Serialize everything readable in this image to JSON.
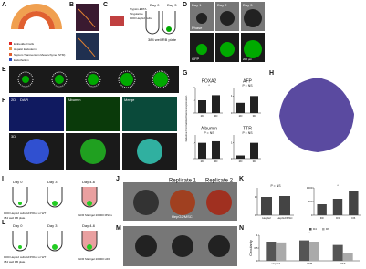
{
  "panels": {
    "A": {
      "label": "A",
      "legend": [
        "Embedded Cells",
        "Hepatic Endoderm",
        "Septum Transversum Mesenchyme (STM)",
        "Endothelium"
      ]
    },
    "B": {
      "label": "B"
    },
    "C": {
      "label": "C",
      "steps": [
        "Trypsin-EDTA",
        "Singularize",
        "1000 HepG2 cells"
      ],
      "plate": "384 well RB plate",
      "days": [
        "Day 0",
        "Day 3"
      ]
    },
    "D": {
      "label": "D",
      "days": [
        "Day 1",
        "Day 2",
        "Day 3"
      ],
      "rows": [
        "Phase",
        "GFP"
      ],
      "scale": "200 µm"
    },
    "E": {
      "label": "E"
    },
    "F": {
      "label": "F",
      "columns": [
        "DAPI",
        "Albumin",
        "Merge"
      ],
      "rows": [
        "2D",
        "3D"
      ]
    },
    "G": {
      "label": "G",
      "ylabel": "Relative Normalized Gene Expression",
      "charts": [
        {
          "title": "FOXA2",
          "annotation": "*",
          "categories": [
            "2D",
            "3D"
          ],
          "values": [
            1,
            1.4
          ],
          "ylim": [
            0,
            2
          ],
          "yticks": [
            0,
            1,
            2
          ],
          "color": "#222"
        },
        {
          "title": "AFP",
          "annotation": "P = NS",
          "categories": [
            "2D",
            "3D"
          ],
          "values": [
            0.6,
            1
          ],
          "ylim": [
            0,
            1.5
          ],
          "yticks": [
            0,
            1
          ],
          "color": "#222"
        },
        {
          "title": "Albumin",
          "annotation": "P = NS",
          "categories": [
            "2D",
            "3D"
          ],
          "values": [
            1,
            1.1
          ],
          "ylim": [
            0,
            1.5
          ],
          "yticks": [
            0,
            1
          ],
          "color": "#222"
        },
        {
          "title": "TTR",
          "annotation": "P = NS",
          "categories": [
            "2D",
            "3D"
          ],
          "values": [
            0.2,
            1
          ],
          "ylim": [
            0,
            1.5
          ],
          "yticks": [
            0,
            1
          ],
          "color": "#222"
        }
      ]
    },
    "H": {
      "label": "H"
    },
    "I": {
      "label": "I",
      "days": [
        "Day 0",
        "Day 3",
        "Day 4-6"
      ],
      "cells": "1000 HepG2 cells GFP/Fluc or WT",
      "plate": "384 well RB plate",
      "matrix": "GFR Matrigel 20,000 MSCs"
    },
    "J": {
      "label": "J",
      "replicates": [
        "Replicate 1",
        "Replicate 2"
      ],
      "inset": "HepG2/MSC"
    },
    "K": {
      "label": "K",
      "charts": [
        {
          "annotation": "P = NS",
          "categories": [
            "HepG2",
            "HepG2/MSC"
          ],
          "values": [
            1,
            1.05
          ],
          "ylim": [
            0,
            1.5
          ],
          "yticks": [
            0,
            1
          ],
          "color": "#444"
        },
        {
          "annotation": "*",
          "categories": [
            "D0",
            "D3",
            "D6"
          ],
          "values": [
            400,
            600,
            900
          ],
          "ylim": [
            0,
            1000
          ],
          "yticks": [
            0,
            500,
            1000
          ],
          "color": "#444"
        }
      ]
    },
    "L": {
      "label": "L",
      "days": [
        "Day 0",
        "Day 3",
        "Day 4-6"
      ],
      "cells": "1000 HepG2 cells GFP/Fluc or WT",
      "plate": "384 well RB plate",
      "matrix": "GFR Matrigel 20,000 HFF"
    },
    "M": {
      "label": "M"
    },
    "N": {
      "label": "N",
      "ylabel": "Circularity",
      "chart": {
        "annotation": "*",
        "categories": [
          "HepG2",
          "HEB",
          "HFF"
        ],
        "ylim": [
          0,
          1
        ],
        "yticks": [
          0,
          0.5,
          1
        ],
        "series": [
          {
            "name": "D4",
            "color": "#555",
            "values": [
              0.75,
              0.8,
              0.62
            ]
          },
          {
            "name": "D6",
            "color": "#aaa",
            "values": [
              0.72,
              0.75,
              0.3
            ]
          }
        ]
      }
    }
  }
}
